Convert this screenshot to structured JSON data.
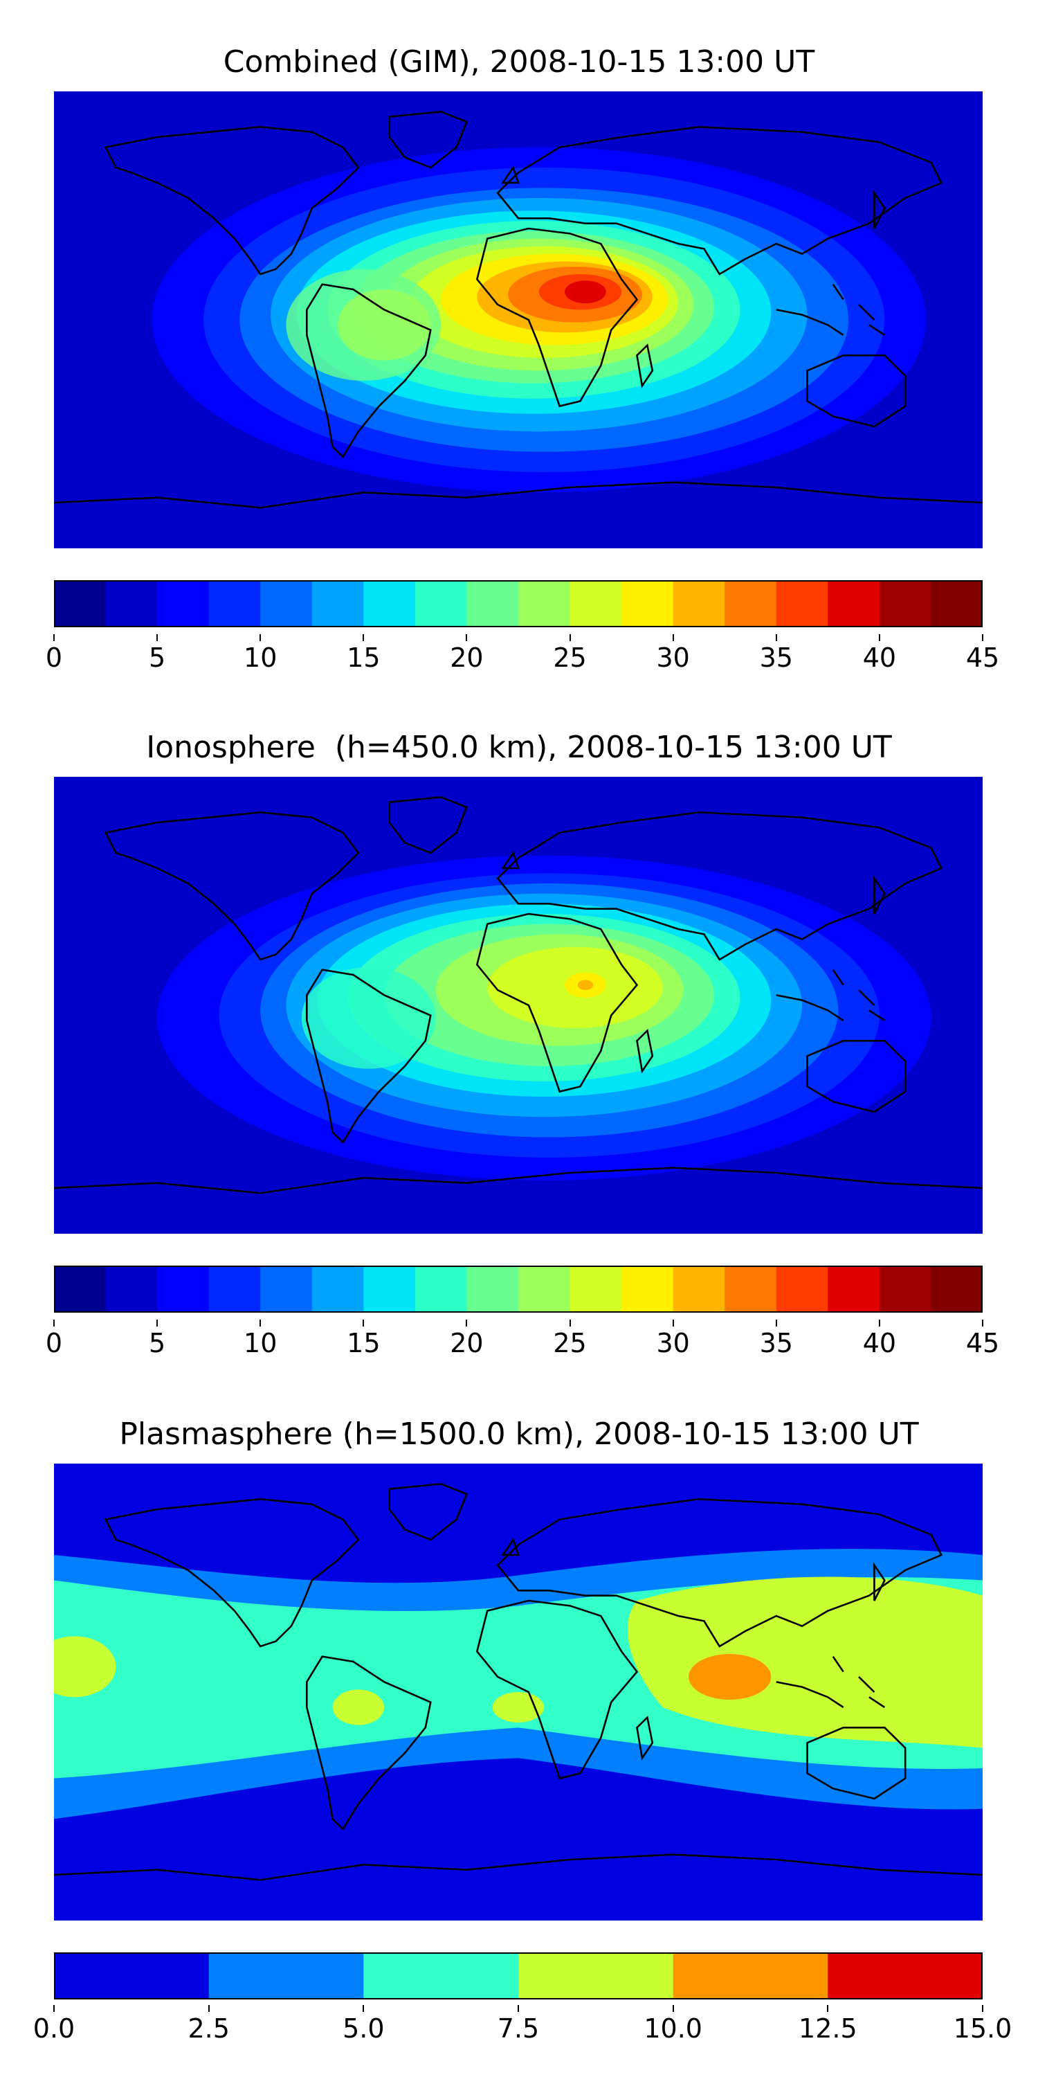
{
  "panels": [
    {
      "title": "Combined (GIM), 2008-10-15 13:00 UT",
      "colorbar": {
        "min": 0,
        "max": 45,
        "step": 2.5,
        "colors": [
          "#00008f",
          "#0000c8",
          "#0000ff",
          "#0028ff",
          "#0068ff",
          "#00a4ff",
          "#00e4f8",
          "#2cffc8",
          "#68ff90",
          "#9cff5a",
          "#d2ff24",
          "#fff000",
          "#ffb400",
          "#ff7800",
          "#ff3c00",
          "#e10000",
          "#a00000",
          "#800000"
        ],
        "ticks": [
          "0",
          "5",
          "10",
          "15",
          "20",
          "25",
          "30",
          "35",
          "40",
          "45"
        ]
      },
      "maxima": [
        {
          "name": "africa",
          "lon": 22,
          "lat": 8,
          "peak": 37
        },
        {
          "name": "south-america",
          "lon": -55,
          "lat": -8,
          "peak": 24
        }
      ]
    },
    {
      "title": "Ionosphere  (h=450.0 km), 2008-10-15 13:00 UT",
      "colorbar": {
        "min": 0,
        "max": 45,
        "step": 2.5,
        "colors": [
          "#00008f",
          "#0000c8",
          "#0000ff",
          "#0028ff",
          "#0068ff",
          "#00a4ff",
          "#00e4f8",
          "#2cffc8",
          "#68ff90",
          "#9cff5a",
          "#d2ff24",
          "#fff000",
          "#ffb400",
          "#ff7800",
          "#ff3c00",
          "#e10000",
          "#a00000",
          "#800000"
        ],
        "ticks": [
          "0",
          "5",
          "10",
          "15",
          "20",
          "25",
          "30",
          "35",
          "40",
          "45"
        ]
      },
      "maxima": [
        {
          "name": "africa",
          "lon": 18,
          "lat": 8,
          "peak": 30
        },
        {
          "name": "south-america",
          "lon": -50,
          "lat": -8,
          "peak": 22
        }
      ]
    },
    {
      "title": "Plasmasphere (h=1500.0 km), 2008-10-15 13:00 UT",
      "colorbar": {
        "min": 0,
        "max": 15,
        "step": 2.5,
        "colors": [
          "#0000e0",
          "#0080ff",
          "#33ffc8",
          "#c8ff33",
          "#ff9600",
          "#e00000"
        ],
        "ticks": [
          "0.0",
          "2.5",
          "5.0",
          "7.5",
          "10.0",
          "12.5",
          "15.0"
        ]
      },
      "maxima": [
        {
          "name": "south-asia",
          "lon": 95,
          "lat": 8,
          "peak": 11
        },
        {
          "name": "pacific-west",
          "lon": -175,
          "lat": 5,
          "peak": 8.5
        }
      ]
    }
  ]
}
